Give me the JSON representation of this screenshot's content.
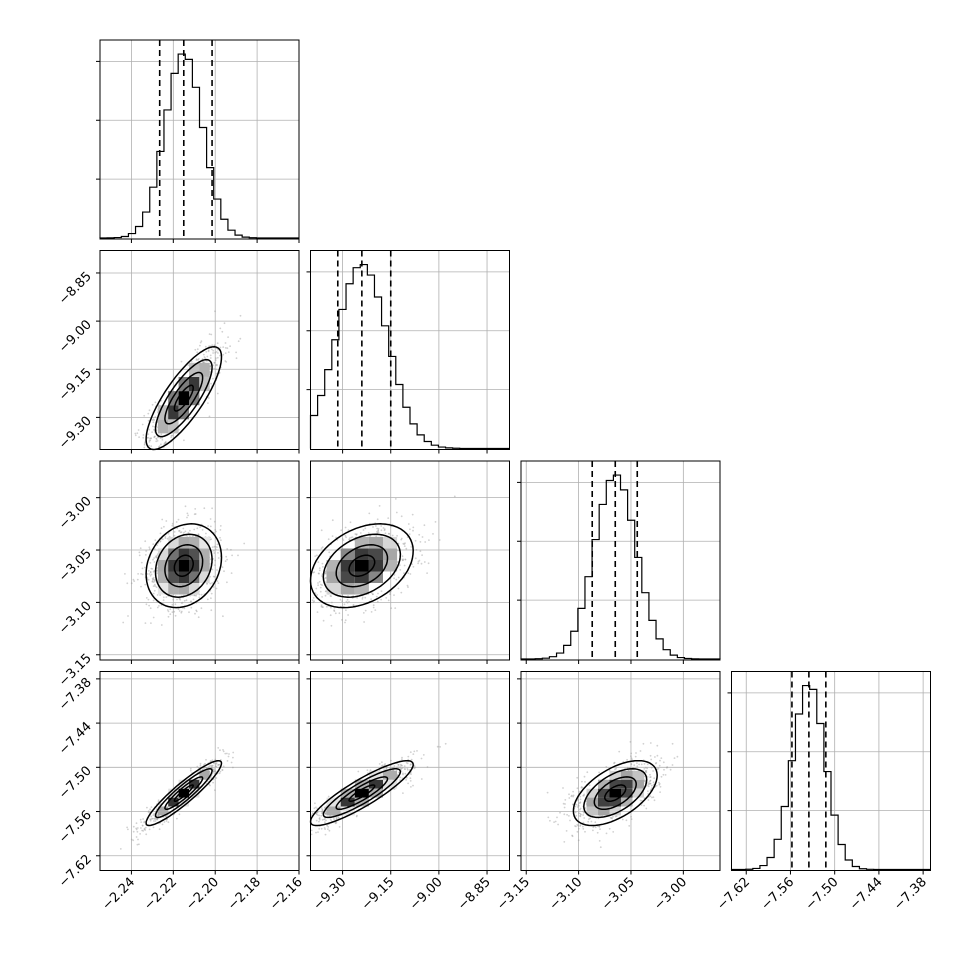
{
  "chart_data": {
    "type": "corner",
    "grid": true,
    "parameters": [
      {
        "center": -2.215,
        "sd": 0.009,
        "lim": [
          -2.255,
          -2.16
        ],
        "ticks": [
          -2.24,
          -2.22,
          -2.2,
          -2.18,
          -2.16
        ],
        "tick_labels": [
          "−2.24",
          "−2.22",
          "−2.20",
          "−2.18",
          "−2.16"
        ],
        "quantiles": [
          -2.2265,
          -2.215,
          -2.2015
        ]
      },
      {
        "center": -9.24,
        "sd": 0.08,
        "lim": [
          -9.4,
          -8.78
        ],
        "ticks": [
          -9.3,
          -9.15,
          -9.0,
          -8.85
        ],
        "tick_labels": [
          "−9.30",
          "−9.15",
          "−9.00",
          "−8.85"
        ],
        "quantiles": [
          -9.315,
          -9.24,
          -9.15
        ]
      },
      {
        "center": -3.065,
        "sd": 0.02,
        "lim": [
          -3.155,
          -2.965
        ],
        "ticks": [
          -3.15,
          -3.1,
          -3.05,
          -3.0
        ],
        "tick_labels": [
          "−3.15",
          "−3.10",
          "−3.05",
          "−3.00"
        ],
        "quantiles": [
          -3.087,
          -3.065,
          -3.044
        ]
      },
      {
        "center": -7.535,
        "sd": 0.022,
        "lim": [
          -7.64,
          -7.37
        ],
        "ticks": [
          -7.62,
          -7.56,
          -7.5,
          -7.44,
          -7.38
        ],
        "tick_labels": [
          "−7.62",
          "−7.56",
          "−7.50",
          "−7.44",
          "−7.38"
        ],
        "quantiles": [
          -7.558,
          -7.535,
          -7.512
        ]
      }
    ],
    "correlations": [
      [
        1.0,
        0.8,
        0.2,
        0.92
      ],
      [
        0.8,
        1.0,
        0.35,
        0.88
      ],
      [
        0.2,
        0.35,
        1.0,
        0.55
      ],
      [
        0.92,
        0.88,
        0.55,
        1.0
      ]
    ],
    "contour_levels_sigma": [
      0.5,
      1.0,
      1.5,
      2.0
    ]
  }
}
